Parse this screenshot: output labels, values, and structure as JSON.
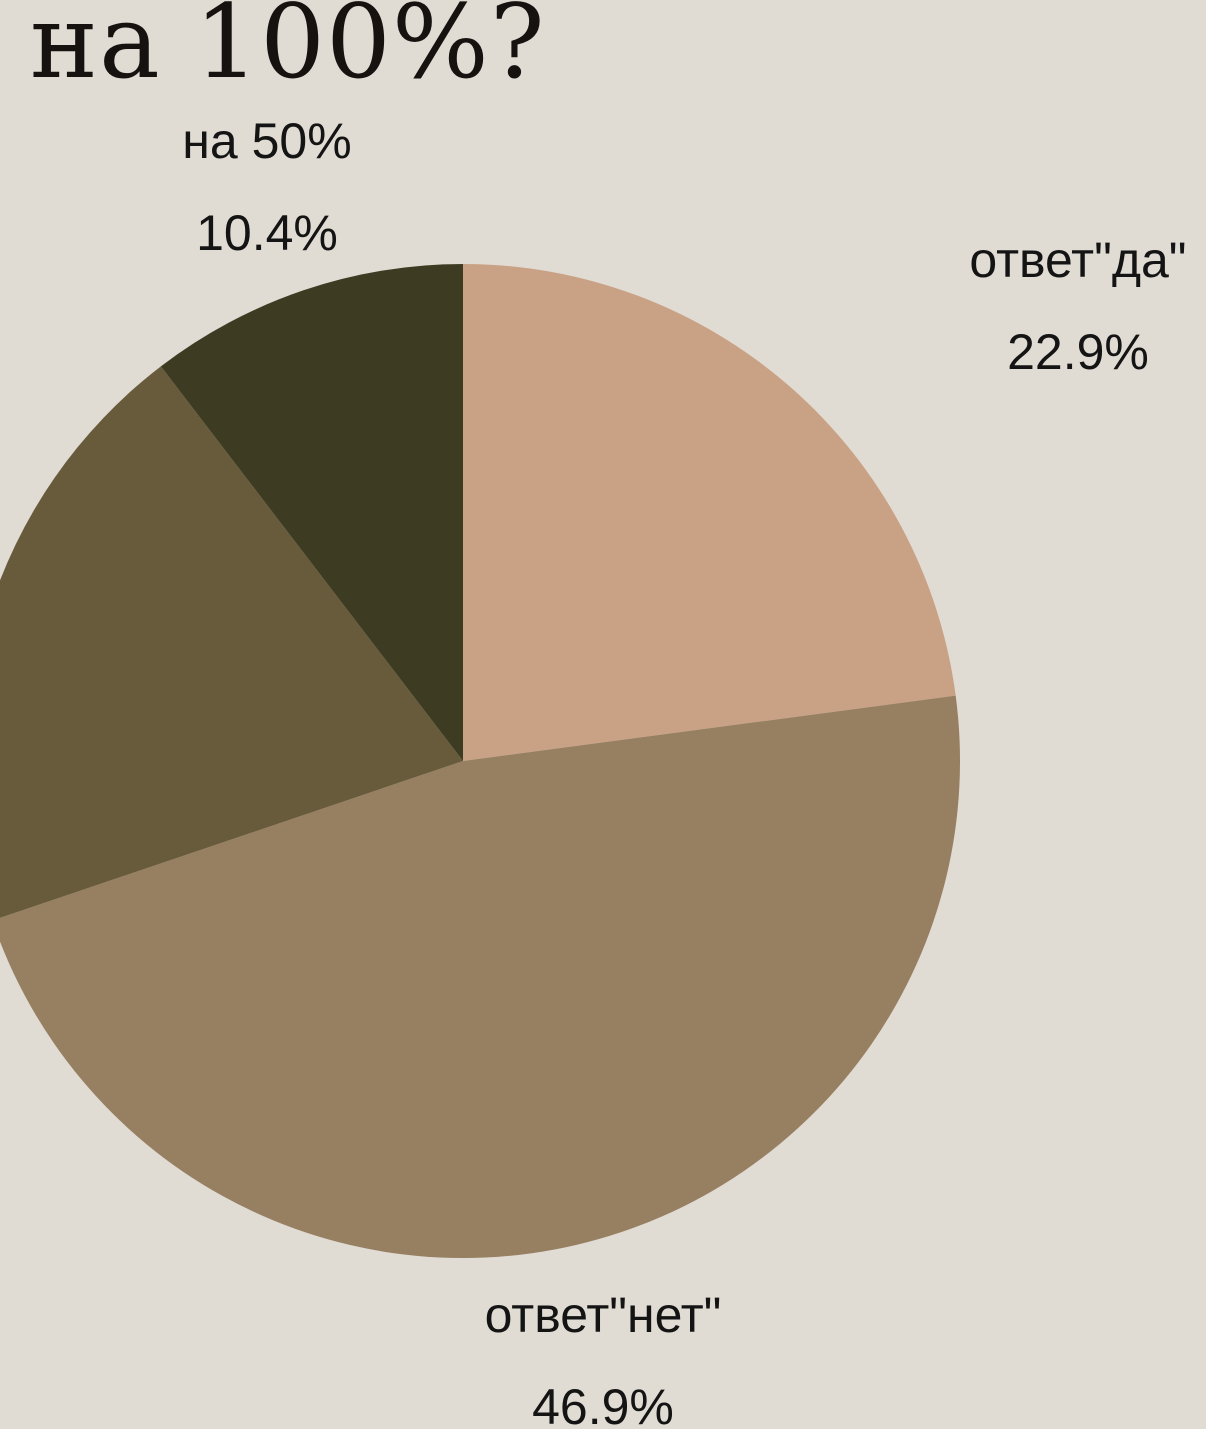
{
  "title": "на 100%?",
  "chart_data": {
    "type": "pie",
    "start": "12 o'clock, clockwise",
    "slices": [
      {
        "label": "ответ\"да\"",
        "value": 22.9,
        "value_label": "22.9%",
        "color": "#c9a285"
      },
      {
        "label": "ответ\"нет\"",
        "value": 46.9,
        "value_label": "46.9%",
        "color": "#977f61"
      },
      {
        "label": "",
        "value": 19.8,
        "value_label": "",
        "color": "#685b3c"
      },
      {
        "label": "на 50%",
        "value": 10.4,
        "value_label": "10.4%",
        "color": "#3e3b23"
      }
    ],
    "legend": "none"
  }
}
